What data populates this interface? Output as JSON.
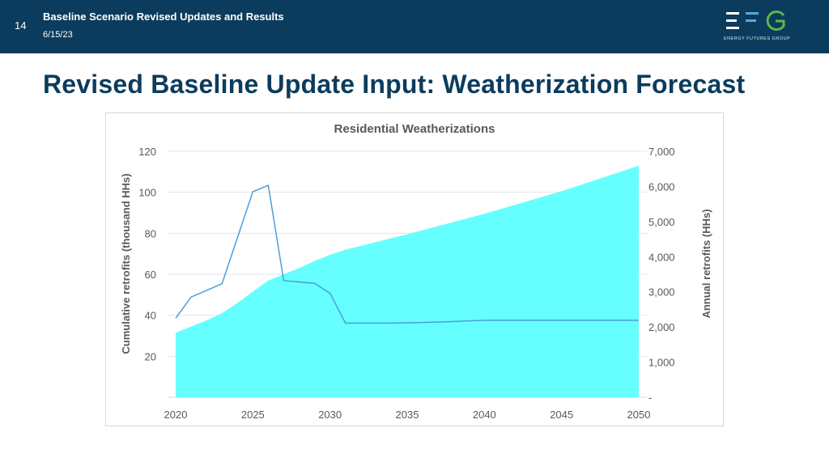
{
  "header": {
    "slide_number": "14",
    "title": "Baseline Scenario Revised Updates and Results",
    "date": "6/15/23",
    "logo_text": "ENERGY FUTURES GROUP"
  },
  "slide_title": "Revised Baseline Update Input: Weatherization Forecast",
  "colors": {
    "header_bg": "#0b3c5d",
    "area_fill": "#66ffff",
    "line": "#4a9fd8",
    "logo_green": "#5bb84a",
    "logo_blue": "#5aa7d8"
  },
  "chart_data": {
    "type": "area",
    "title": "Residential Weatherizations",
    "ylabel": "Cumulative retrofits (thousand HHs)",
    "y2label": "Annual retrofits (HHs)",
    "x_ticks": [
      "2020",
      "2025",
      "2030",
      "2035",
      "2040",
      "2045",
      "2050"
    ],
    "y_ticks": [
      "20",
      "40",
      "60",
      "80",
      "100",
      "120"
    ],
    "y2_ticks": [
      "-",
      "1,000",
      "2,000",
      "3,000",
      "4,000",
      "5,000",
      "6,000",
      "7,000"
    ],
    "xlim": [
      2020,
      2050
    ],
    "ylim": [
      0,
      120
    ],
    "y2lim": [
      0,
      7000
    ],
    "series": [
      {
        "name": "Cumulative retrofits",
        "axis": "left",
        "style": "area",
        "x": [
          2020,
          2021,
          2022,
          2023,
          2024,
          2025,
          2026,
          2027,
          2028,
          2029,
          2030,
          2031,
          2035,
          2040,
          2045,
          2050
        ],
        "values": [
          31.5,
          34.5,
          37.5,
          41,
          46,
          51.5,
          57,
          60,
          63,
          66.5,
          69.5,
          72,
          79.5,
          89.5,
          100.5,
          113
        ]
      },
      {
        "name": "Annual retrofits",
        "axis": "right",
        "style": "line",
        "x": [
          2020,
          2021,
          2023,
          2025,
          2026,
          2027,
          2029,
          2030,
          2031,
          2034,
          2037,
          2040,
          2050
        ],
        "values": [
          2250,
          2850,
          3230,
          5850,
          6030,
          3320,
          3240,
          2960,
          2110,
          2110,
          2140,
          2190,
          2190
        ]
      }
    ]
  }
}
